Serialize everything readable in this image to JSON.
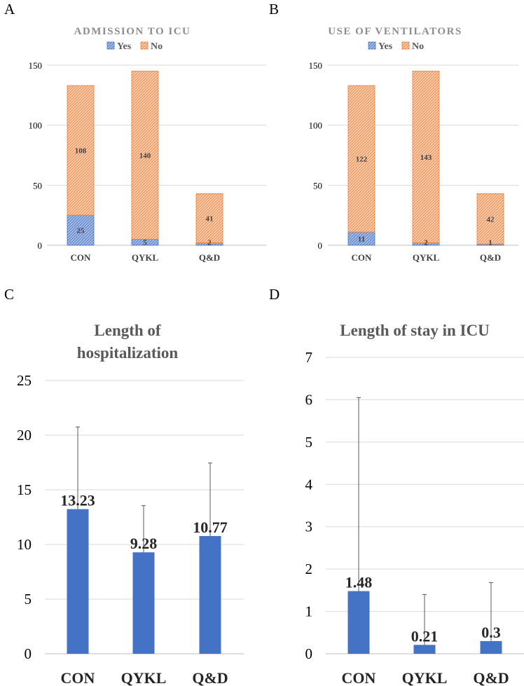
{
  "colors": {
    "yes": "#4472c4",
    "no": "#ed7d31",
    "bar": "#4472c4",
    "grid": "#d9d9d9"
  },
  "chart_data": [
    {
      "panel": "A",
      "type": "bar",
      "stacked": true,
      "title": "ADMISSION TO ICU",
      "categories": [
        "CON",
        "QYKL",
        "Q&D"
      ],
      "series": [
        {
          "name": "Yes",
          "values": [
            25,
            5,
            2
          ]
        },
        {
          "name": "No",
          "values": [
            108,
            140,
            41
          ]
        }
      ],
      "ylim": [
        0,
        150
      ],
      "yticks": [
        0,
        50,
        100,
        150
      ],
      "legend": "top-center"
    },
    {
      "panel": "B",
      "type": "bar",
      "stacked": true,
      "title": "USE OF VENTILATORS",
      "categories": [
        "CON",
        "QYKL",
        "Q&D"
      ],
      "series": [
        {
          "name": "Yes",
          "values": [
            11,
            2,
            1
          ]
        },
        {
          "name": "No",
          "values": [
            122,
            143,
            42
          ]
        }
      ],
      "ylim": [
        0,
        150
      ],
      "yticks": [
        0,
        50,
        100,
        150
      ],
      "legend": "top-center"
    },
    {
      "panel": "C",
      "type": "bar",
      "title_lines": [
        "Length of",
        "hospitalization"
      ],
      "categories": [
        "CON",
        "QYKL",
        "Q&D"
      ],
      "values": [
        13.23,
        9.28,
        10.77
      ],
      "error_upper": [
        20.75,
        13.55,
        17.45
      ],
      "ylim": [
        0,
        25
      ],
      "yticks": [
        0,
        5,
        10,
        15,
        20,
        25
      ]
    },
    {
      "panel": "D",
      "type": "bar",
      "title": "Length of stay in ICU",
      "categories": [
        "CON",
        "QYKL",
        "Q&D"
      ],
      "values": [
        1.48,
        0.21,
        0.3
      ],
      "error_upper": [
        6.05,
        1.4,
        1.68
      ],
      "ylim": [
        0,
        7
      ],
      "yticks": [
        0,
        1,
        2,
        3,
        4,
        5,
        6,
        7
      ]
    }
  ]
}
